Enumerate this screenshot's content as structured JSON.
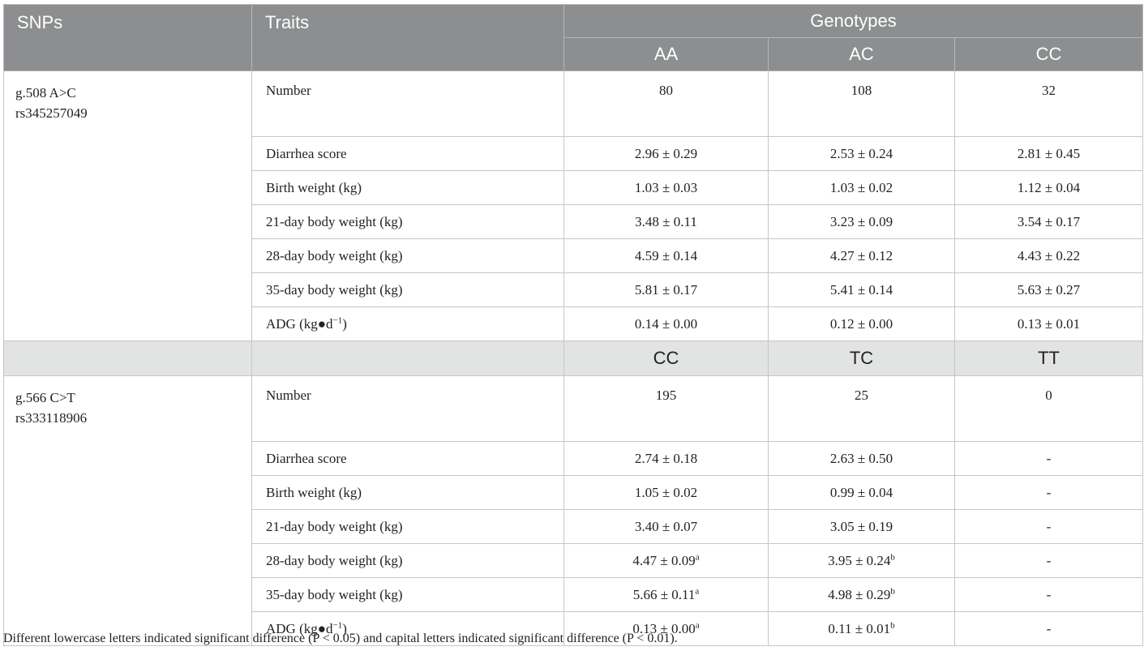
{
  "header": {
    "snps_label": "SNPs",
    "traits_label": "Traits",
    "genotypes_label": "Genotypes",
    "genotypes": [
      "AA",
      "AC",
      "CC"
    ]
  },
  "snp1": {
    "name": "g.508 A>C",
    "id": "rs345257049",
    "rows": [
      {
        "trait": "Number",
        "v": [
          "80",
          "108",
          "32"
        ]
      },
      {
        "trait": "Diarrhea score",
        "v": [
          "2.96 ± 0.29",
          "2.53 ± 0.24",
          "2.81 ± 0.45"
        ]
      },
      {
        "trait": "Birth weight (kg)",
        "v": [
          "1.03 ± 0.03",
          "1.03 ± 0.02",
          "1.12 ± 0.04"
        ]
      },
      {
        "trait": "21-day body weight (kg)",
        "v": [
          "3.48 ± 0.11",
          "3.23 ± 0.09",
          "3.54 ± 0.17"
        ]
      },
      {
        "trait": "28-day body weight (kg)",
        "v": [
          "4.59 ± 0.14",
          "4.27 ± 0.12",
          "4.43 ± 0.22"
        ]
      },
      {
        "trait": "35-day body weight (kg)",
        "v": [
          "5.81 ± 0.17",
          "5.41 ± 0.14",
          "5.63 ± 0.27"
        ]
      },
      {
        "trait_prefix": "ADG (kg●d",
        "trait_sup": "−1",
        "trait_suffix": ")",
        "v": [
          "0.14 ± 0.00",
          "0.12 ± 0.00",
          "0.13 ± 0.01"
        ]
      }
    ]
  },
  "snp2_genotypes": [
    "CC",
    "TC",
    "TT"
  ],
  "snp2": {
    "name": "g.566 C>T",
    "id": "rs333118906",
    "rows": [
      {
        "trait": "Number",
        "v": [
          "195",
          "25",
          "0"
        ]
      },
      {
        "trait": "Diarrhea score",
        "v": [
          "2.74 ± 0.18",
          "2.63 ± 0.50",
          "-"
        ]
      },
      {
        "trait": "Birth weight (kg)",
        "v": [
          "1.05 ± 0.02",
          "0.99 ± 0.04",
          "-"
        ]
      },
      {
        "trait": "21-day body weight (kg)",
        "v": [
          "3.40 ± 0.07",
          "3.05 ± 0.19",
          "-"
        ]
      },
      {
        "trait": "28-day body weight (kg)",
        "v": [
          "4.47 ± 0.09",
          "3.95 ± 0.24",
          "-"
        ],
        "sup": [
          "a",
          "b",
          ""
        ]
      },
      {
        "trait": "35-day body weight (kg)",
        "v": [
          "5.66 ± 0.11",
          "4.98 ± 0.29",
          "-"
        ],
        "sup": [
          "a",
          "b",
          ""
        ]
      },
      {
        "trait_prefix": "ADG (kg●d",
        "trait_sup": "−1",
        "trait_suffix": ")",
        "v": [
          "0.13 ± 0.00",
          "0.11 ± 0.01",
          "-"
        ],
        "sup": [
          "a",
          "b",
          ""
        ]
      }
    ]
  },
  "footnote": "Different lowercase letters indicated significant difference (P < 0.05) and capital letters indicated significant difference (P < 0.01)."
}
